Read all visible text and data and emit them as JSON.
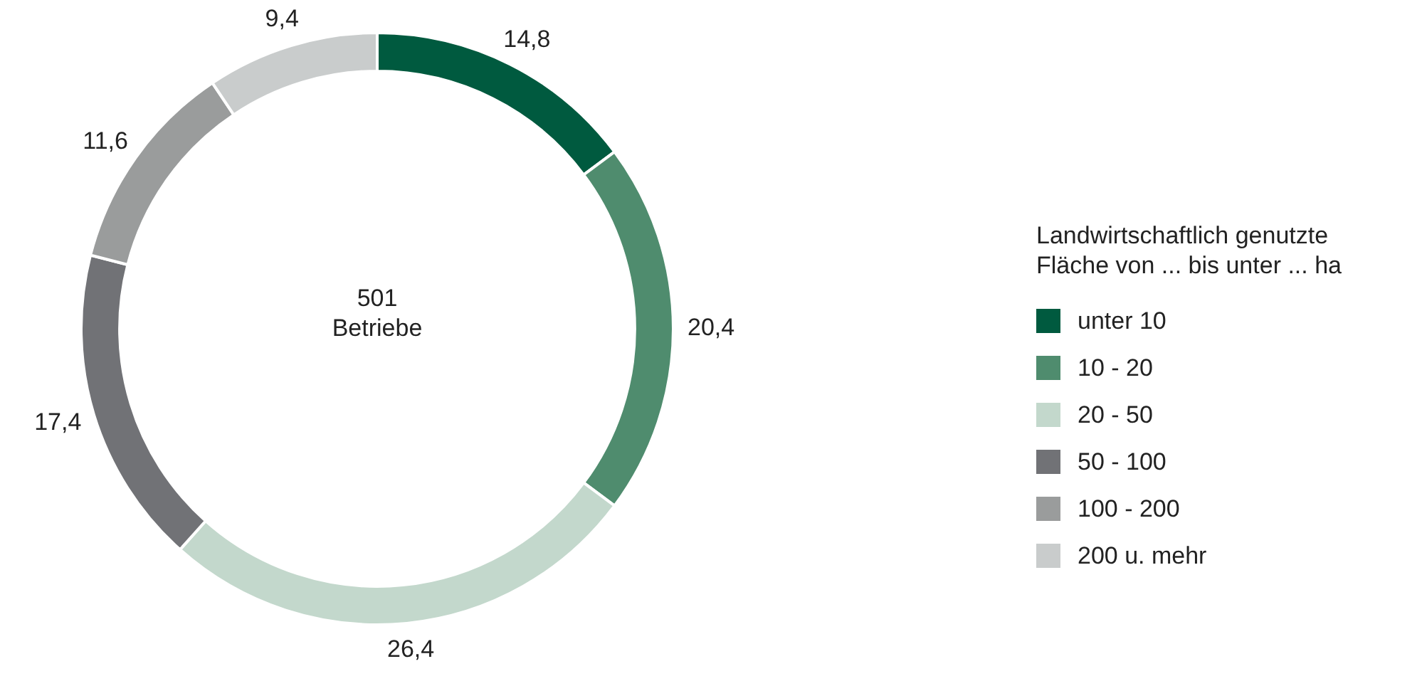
{
  "chart_data": {
    "type": "donut",
    "categories": [
      "unter 10",
      "10 - 20",
      "20 - 50",
      "50 - 100",
      "100 - 200",
      "200 u. mehr"
    ],
    "values": [
      14.8,
      20.4,
      26.4,
      17.4,
      11.6,
      9.4
    ],
    "colors": [
      "#005a3f",
      "#4f8c6e",
      "#c3d8cc",
      "#717276",
      "#9a9c9c",
      "#c9cccc"
    ],
    "value_labels": [
      "14,8",
      "20,4",
      "26,4",
      "17,4",
      "11,6",
      "9,4"
    ],
    "legend": "right",
    "legend_title": "Landwirtschaftlich genutzte\nFläche von ... bis unter ... ha",
    "annotations": [
      "501",
      "Betriebe"
    ]
  }
}
